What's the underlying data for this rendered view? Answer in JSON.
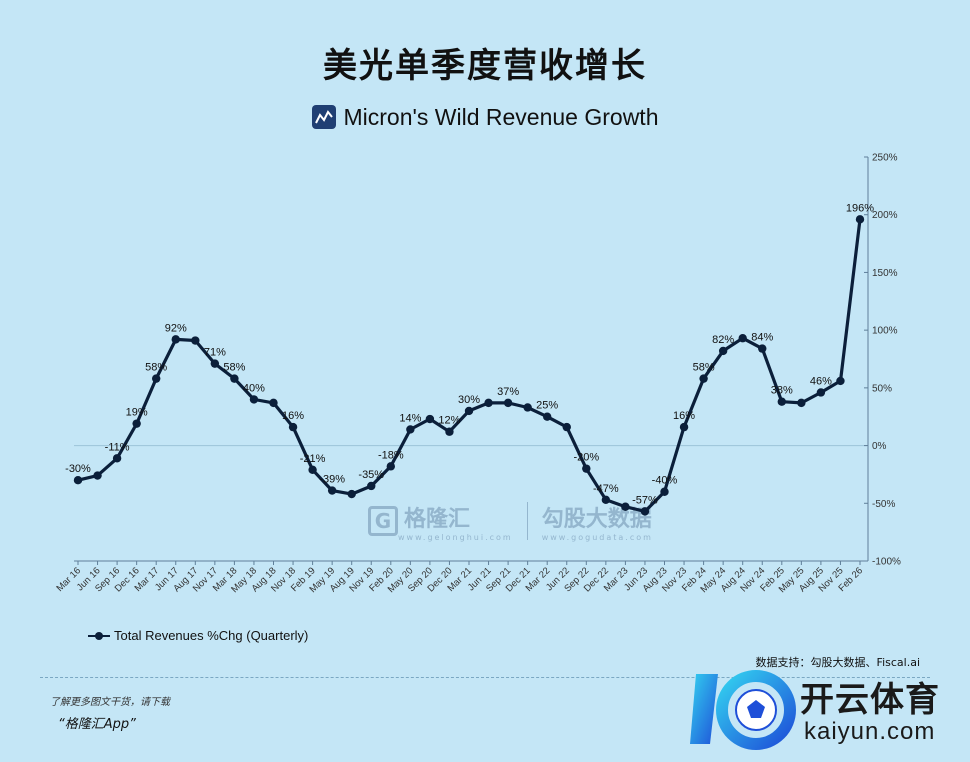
{
  "title": "美光单季度营收增长",
  "subtitle": "Micron's Wild Revenue Growth",
  "source": "数据支持：勾股大数据、Fiscal.ai",
  "promo_text": "了解更多图文干货，请下载",
  "promo_app": "“格隆汇App”",
  "watermark": {
    "brand": "格隆汇",
    "brand_url": "www.gelonghui.com",
    "partner": "勾股大数据",
    "partner_url": "www.gogudata.com"
  },
  "corner_logo": {
    "cn": "开云体育",
    "en": "kaiyun.com"
  },
  "colors": {
    "background": "#c4e6f6",
    "line": "#0b1f3a",
    "zero_line": "#9cc3d8"
  },
  "chart_data": {
    "type": "line",
    "categories": [
      "Mar 16",
      "Jun 16",
      "Sep 16",
      "Dec 16",
      "Mar 17",
      "Jun 17",
      "Aug 17",
      "Nov 17",
      "Mar 18",
      "May 18",
      "Aug 18",
      "Nov 18",
      "Feb 19",
      "May 19",
      "Aug 19",
      "Nov 19",
      "Feb 20",
      "May 20",
      "Sep 20",
      "Dec 20",
      "Mar 21",
      "Jun 21",
      "Sep 21",
      "Dec 21",
      "Mar 22",
      "Jun 22",
      "Sep 22",
      "Dec 22",
      "Mar 23",
      "Jun 23",
      "Aug 23",
      "Nov 23",
      "Feb 24",
      "May 24",
      "Aug 24",
      "Nov 24",
      "Feb 25",
      "May 25",
      "Aug 25",
      "Nov 25",
      "Feb 26"
    ],
    "series": [
      {
        "name": "Total Revenues %Chg (Quarterly)",
        "values": [
          -30,
          -26,
          -11,
          19,
          58,
          92,
          91,
          71,
          58,
          40,
          37,
          16,
          -21,
          -39,
          -42,
          -35,
          -18,
          14,
          23,
          12,
          30,
          37,
          37,
          33,
          25,
          16,
          -20,
          -47,
          -53,
          -57,
          -40,
          16,
          58,
          82,
          93,
          84,
          38,
          37,
          46,
          56,
          196
        ]
      }
    ],
    "data_labels": [
      {
        "index": 0,
        "text": "-30%"
      },
      {
        "index": 2,
        "text": "-11%"
      },
      {
        "index": 3,
        "text": "19%"
      },
      {
        "index": 4,
        "text": "58%"
      },
      {
        "index": 5,
        "text": "92%"
      },
      {
        "index": 7,
        "text": "71%"
      },
      {
        "index": 8,
        "text": "58%"
      },
      {
        "index": 9,
        "text": "40%"
      },
      {
        "index": 11,
        "text": "16%"
      },
      {
        "index": 12,
        "text": "-21%"
      },
      {
        "index": 13,
        "text": "-39%"
      },
      {
        "index": 15,
        "text": "-35%"
      },
      {
        "index": 16,
        "text": "-18%"
      },
      {
        "index": 17,
        "text": "14%"
      },
      {
        "index": 19,
        "text": "12%"
      },
      {
        "index": 20,
        "text": "30%"
      },
      {
        "index": 22,
        "text": "37%"
      },
      {
        "index": 24,
        "text": "25%"
      },
      {
        "index": 26,
        "text": "-20%"
      },
      {
        "index": 27,
        "text": "-47%"
      },
      {
        "index": 29,
        "text": "-57%"
      },
      {
        "index": 30,
        "text": "-40%"
      },
      {
        "index": 31,
        "text": "16%"
      },
      {
        "index": 32,
        "text": "58%"
      },
      {
        "index": 33,
        "text": "82%"
      },
      {
        "index": 35,
        "text": "84%"
      },
      {
        "index": 36,
        "text": "38%"
      },
      {
        "index": 38,
        "text": "46%"
      },
      {
        "index": 40,
        "text": "196%"
      }
    ],
    "yticks": [
      250,
      200,
      150,
      100,
      50,
      0,
      -50,
      -100
    ],
    "ytick_labels": [
      "250%",
      "200%",
      "150%",
      "100%",
      "50%",
      "0%",
      "-50%",
      "-100%"
    ],
    "ylim": [
      -100,
      250
    ],
    "grid": false,
    "legend_position": "bottom-left"
  }
}
